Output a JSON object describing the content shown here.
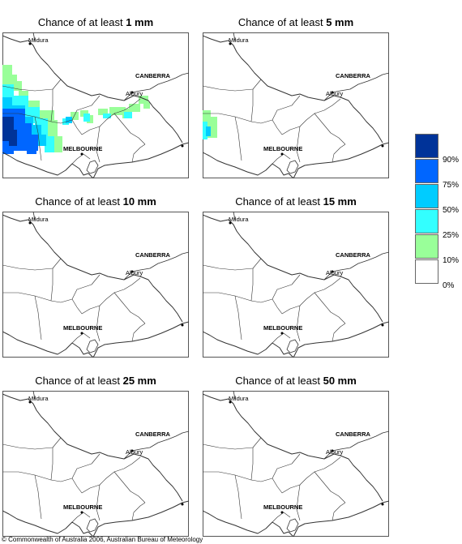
{
  "panels": [
    {
      "title_prefix": "Chance of at least ",
      "threshold": "1 mm"
    },
    {
      "title_prefix": "Chance of at least ",
      "threshold": "5 mm"
    },
    {
      "title_prefix": "Chance of at least ",
      "threshold": "10 mm"
    },
    {
      "title_prefix": "Chance of at least ",
      "threshold": "15 mm"
    },
    {
      "title_prefix": "Chance of at least ",
      "threshold": "25 mm"
    },
    {
      "title_prefix": "Chance of at least ",
      "threshold": "50 mm"
    }
  ],
  "cities": {
    "mildura": "Mildura",
    "canberra": "CANBERRA",
    "albury": "Albury",
    "melbourne": "MELBOURNE"
  },
  "legend": {
    "colors": [
      "#003399",
      "#0066ff",
      "#00ccff",
      "#33ffff",
      "#99ff99",
      "#ffffff"
    ],
    "labels": [
      "90%",
      "75%",
      "50%",
      "25%",
      "10%",
      "0%"
    ]
  },
  "footer": "© Commonwealth of Australia 2006, Australian Bureau of Meteorology"
}
